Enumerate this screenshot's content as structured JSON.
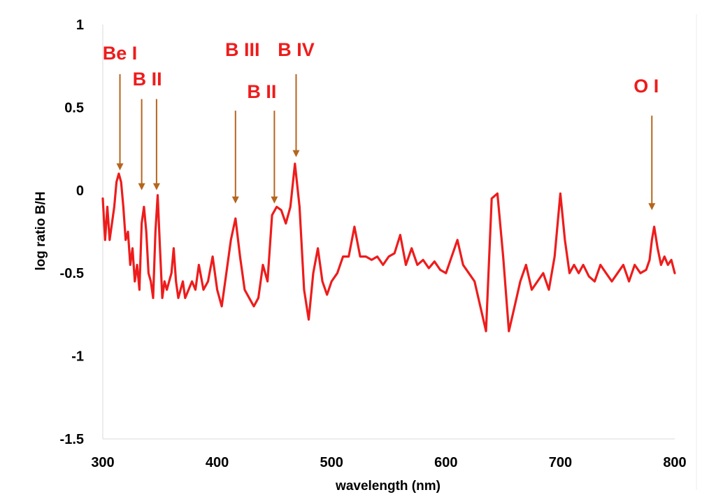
{
  "chart_data": {
    "type": "line",
    "title": "",
    "xlabel": "wavelength (nm)",
    "ylabel": "log ratio B/H",
    "xlim": [
      300,
      800
    ],
    "ylim": [
      -1.5,
      1
    ],
    "x_ticks": [
      "300",
      "400",
      "500",
      "600",
      "700",
      "800"
    ],
    "y_ticks": [
      "1",
      "0.5",
      "0",
      "-0.5",
      "-1",
      "-1.5"
    ],
    "grid": false,
    "line_color": "#ee1c1c",
    "annotation_color": "#ee1c1c",
    "arrow_color": "#b5651d",
    "series": [
      {
        "x": [
          300,
          302,
          304,
          306,
          308,
          310,
          312,
          314,
          316,
          318,
          320,
          322,
          324,
          326,
          328,
          330,
          332,
          334,
          336,
          338,
          340,
          342,
          344,
          346,
          348,
          350,
          352,
          354,
          356,
          358,
          360,
          362,
          364,
          366,
          368,
          370,
          372,
          375,
          378,
          381,
          384,
          388,
          392,
          396,
          400,
          404,
          408,
          412,
          416,
          420,
          424,
          428,
          432,
          436,
          440,
          444,
          448,
          452,
          456,
          460,
          464,
          468,
          472,
          476,
          480,
          484,
          488,
          492,
          496,
          500,
          505,
          510,
          515,
          520,
          525,
          530,
          535,
          540,
          545,
          550,
          555,
          560,
          565,
          570,
          575,
          580,
          585,
          590,
          595,
          600,
          605,
          610,
          615,
          620,
          625,
          630,
          635,
          640,
          645,
          650,
          655,
          660,
          665,
          670,
          675,
          680,
          685,
          690,
          695,
          700,
          704,
          708,
          712,
          716,
          720,
          725,
          730,
          735,
          740,
          745,
          750,
          755,
          760,
          765,
          770,
          775,
          778,
          780,
          782,
          785,
          788,
          791,
          794,
          797,
          800
        ],
        "y": [
          -0.05,
          -0.3,
          -0.1,
          -0.3,
          -0.2,
          -0.1,
          0.05,
          0.1,
          0.05,
          -0.1,
          -0.3,
          -0.25,
          -0.45,
          -0.35,
          -0.55,
          -0.45,
          -0.6,
          -0.2,
          -0.1,
          -0.25,
          -0.5,
          -0.55,
          -0.65,
          -0.25,
          -0.03,
          -0.35,
          -0.65,
          -0.55,
          -0.6,
          -0.55,
          -0.5,
          -0.35,
          -0.55,
          -0.65,
          -0.6,
          -0.55,
          -0.65,
          -0.6,
          -0.55,
          -0.6,
          -0.45,
          -0.6,
          -0.55,
          -0.4,
          -0.6,
          -0.7,
          -0.5,
          -0.3,
          -0.17,
          -0.4,
          -0.6,
          -0.65,
          -0.7,
          -0.65,
          -0.45,
          -0.55,
          -0.15,
          -0.1,
          -0.12,
          -0.2,
          -0.1,
          0.16,
          -0.1,
          -0.6,
          -0.78,
          -0.5,
          -0.35,
          -0.55,
          -0.63,
          -0.55,
          -0.5,
          -0.4,
          -0.4,
          -0.22,
          -0.4,
          -0.4,
          -0.42,
          -0.4,
          -0.45,
          -0.4,
          -0.38,
          -0.27,
          -0.45,
          -0.35,
          -0.45,
          -0.42,
          -0.47,
          -0.43,
          -0.48,
          -0.5,
          -0.4,
          -0.3,
          -0.45,
          -0.5,
          -0.55,
          -0.7,
          -0.85,
          -0.05,
          -0.02,
          -0.4,
          -0.85,
          -0.7,
          -0.55,
          -0.45,
          -0.6,
          -0.55,
          -0.5,
          -0.6,
          -0.4,
          -0.02,
          -0.3,
          -0.5,
          -0.45,
          -0.5,
          -0.45,
          -0.52,
          -0.55,
          -0.45,
          -0.5,
          -0.55,
          -0.5,
          -0.45,
          -0.55,
          -0.45,
          -0.5,
          -0.48,
          -0.42,
          -0.3,
          -0.22,
          -0.35,
          -0.45,
          -0.4,
          -0.45,
          -0.42,
          -0.5
        ]
      }
    ],
    "annotations": [
      {
        "label": "Be I",
        "x": 315,
        "y_tip": 0.12,
        "y_start": 0.7
      },
      {
        "label": "B II",
        "x": 334,
        "y_tip": 0.0,
        "y_start": 0.55
      },
      {
        "label": "",
        "x": 347,
        "y_tip": 0.0,
        "y_start": 0.55
      },
      {
        "label": "B III",
        "x": 416,
        "y_tip": -0.08,
        "y_start": 0.48
      },
      {
        "label": "B II",
        "x": 450,
        "y_tip": -0.08,
        "y_start": 0.48
      },
      {
        "label": "B IV",
        "x": 469,
        "y_tip": 0.2,
        "y_start": 0.7
      },
      {
        "label": "O I",
        "x": 780,
        "y_tip": -0.12,
        "y_start": 0.45
      }
    ]
  }
}
